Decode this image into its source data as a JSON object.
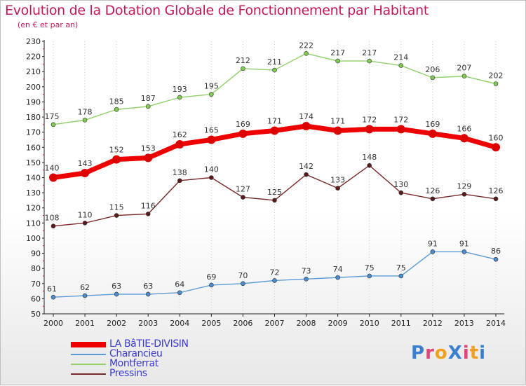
{
  "title": "Evolution de la Dotation Globale de Fonctionnement par Habitant",
  "subtitle": "(en € et par an)",
  "logo": {
    "text": "ProXiti"
  },
  "chart_data": {
    "type": "line",
    "x": [
      "2000",
      "2001",
      "2002",
      "2003",
      "2004",
      "2005",
      "2006",
      "2007",
      "2008",
      "2009",
      "2010",
      "2011",
      "2012",
      "2013",
      "2014"
    ],
    "ylim": [
      50,
      230
    ],
    "ytick_step": 10,
    "grid": "vertical-dotted",
    "legend_position": "bottom-left",
    "series": [
      {
        "name": "LA BâTIE-DIVISIN",
        "color": "#ee0000",
        "values": [
          140,
          143,
          152,
          153,
          162,
          165,
          169,
          171,
          174,
          171,
          172,
          172,
          169,
          166,
          160
        ]
      },
      {
        "name": "Charancieu",
        "color": "#5b9bd5",
        "values": [
          61,
          62,
          63,
          63,
          64,
          69,
          70,
          72,
          73,
          74,
          75,
          75,
          91,
          91,
          86
        ]
      },
      {
        "name": "Montferrat",
        "color": "#8fd16a",
        "values": [
          175,
          178,
          185,
          187,
          193,
          195,
          212,
          211,
          222,
          217,
          217,
          214,
          206,
          207,
          202
        ]
      },
      {
        "name": "Pressins",
        "color": "#7a2a2a",
        "values": [
          108,
          110,
          115,
          116,
          138,
          140,
          127,
          125,
          142,
          133,
          148,
          130,
          126,
          129,
          126
        ]
      }
    ]
  }
}
